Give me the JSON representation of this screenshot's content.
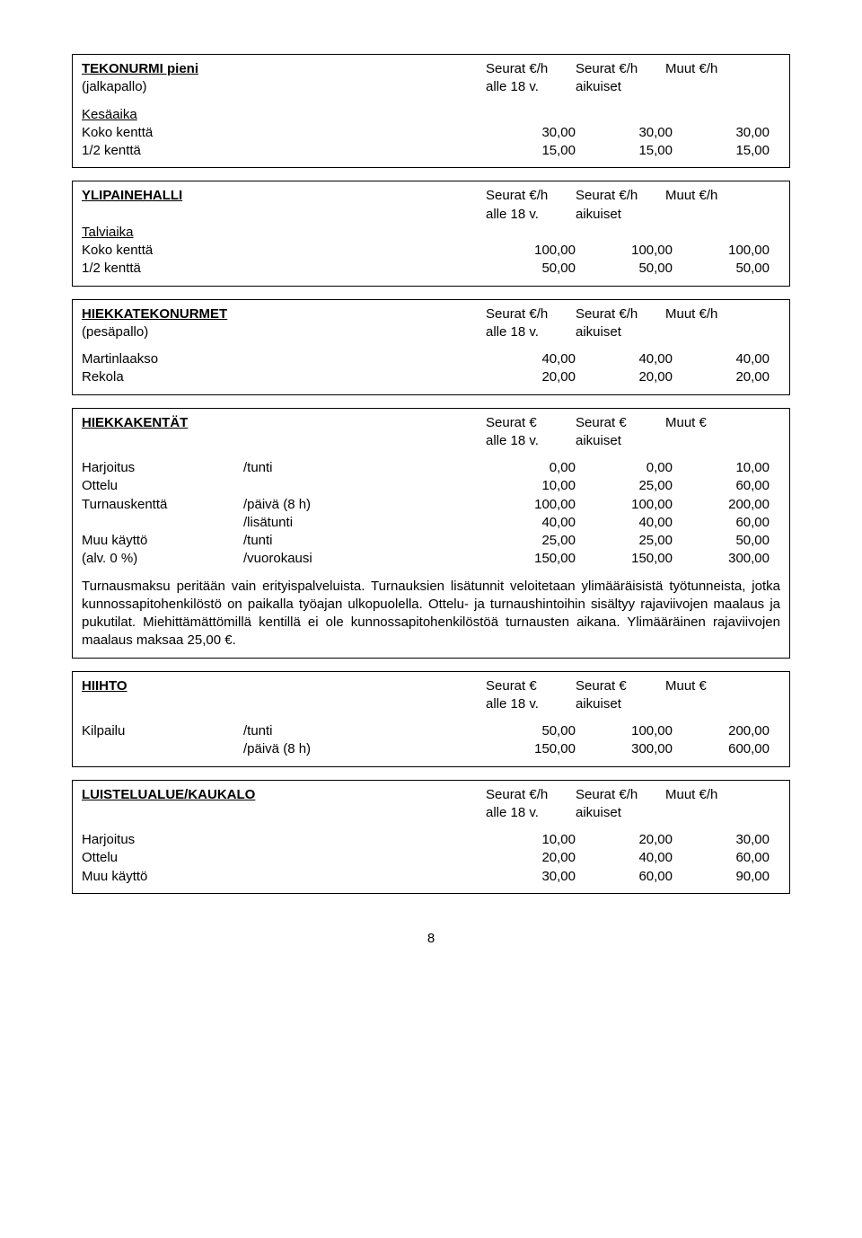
{
  "s1": {
    "title": "TEKONURMI pieni",
    "sub": "(jalkapallo)",
    "h1": "Seurat €/h",
    "h2": "Seurat €/h",
    "h3": "Muut €/h",
    "h1b": "alle 18 v.",
    "h2b": "aikuiset",
    "cat": "Kesäaika",
    "r1l": "Koko kenttä",
    "r1a": "30,00",
    "r1b": "30,00",
    "r1c": "30,00",
    "r2l": "1/2 kenttä",
    "r2a": "15,00",
    "r2b": "15,00",
    "r2c": "15,00"
  },
  "s2": {
    "title": "YLIPAINEHALLI",
    "h1": "Seurat €/h",
    "h2": "Seurat €/h",
    "h3": "Muut €/h",
    "h1b": "alle 18 v.",
    "h2b": "aikuiset",
    "cat": "Talviaika",
    "r1l": "Koko kenttä",
    "r1a": "100,00",
    "r1b": "100,00",
    "r1c": "100,00",
    "r2l": "1/2 kenttä",
    "r2a": "50,00",
    "r2b": "50,00",
    "r2c": "50,00"
  },
  "s3": {
    "title": "HIEKKATEKONURMET",
    "sub": "(pesäpallo)",
    "h1": "Seurat €/h",
    "h2": "Seurat €/h",
    "h3": "Muut €/h",
    "h1b": "alle 18 v.",
    "h2b": "aikuiset",
    "r1l": "Martinlaakso",
    "r1a": "40,00",
    "r1b": "40,00",
    "r1c": "40,00",
    "r2l": "Rekola",
    "r2a": "20,00",
    "r2b": "20,00",
    "r2c": "20,00"
  },
  "s4": {
    "title": "HIEKKAKENTÄT",
    "h1": "Seurat €",
    "h2": "Seurat €",
    "h3": "Muut €",
    "h1b": "alle 18 v.",
    "h2b": "aikuiset",
    "r1l": "Harjoitus",
    "r1m": "/tunti",
    "r1a": "0,00",
    "r1b": "0,00",
    "r1c": "10,00",
    "r2l": "Ottelu",
    "r2m": "",
    "r2a": "10,00",
    "r2b": "25,00",
    "r2c": "60,00",
    "r3l": "Turnauskenttä",
    "r3m": "/päivä (8 h)",
    "r3a": "100,00",
    "r3b": "100,00",
    "r3c": "200,00",
    "r4l": "",
    "r4m": "/lisätunti",
    "r4a": "40,00",
    "r4b": "40,00",
    "r4c": "60,00",
    "r5l": "Muu käyttö",
    "r5m": "/tunti",
    "r5a": "25,00",
    "r5b": "25,00",
    "r5c": "50,00",
    "r6l": "(alv. 0 %)",
    "r6m": "/vuorokausi",
    "r6a": "150,00",
    "r6b": "150,00",
    "r6c": "300,00",
    "para": "Turnausmaksu peritään vain erityispalveluista. Turnauksien lisätunnit veloitetaan ylimääräisistä työtunneista, jotka kunnossapitohenkilöstö on paikalla työajan ulkopuolella. Ottelu- ja turnaushintoihin sisältyy rajaviivojen maalaus ja pukutilat. Miehittämättömillä kentillä ei ole kunnossapitohenkilöstöä turnausten aikana. Ylimääräinen rajaviivojen maalaus maksaa 25,00 €."
  },
  "s5": {
    "title": "HIIHTO",
    "h1": "Seurat €",
    "h2": "Seurat €",
    "h3": "Muut €",
    "h1b": "alle 18 v.",
    "h2b": "aikuiset",
    "r1l": "Kilpailu",
    "r1m": "/tunti",
    "r1a": "50,00",
    "r1b": "100,00",
    "r1c": "200,00",
    "r2l": "",
    "r2m": "/päivä (8 h)",
    "r2a": "150,00",
    "r2b": "300,00",
    "r2c": "600,00"
  },
  "s6": {
    "title": "LUISTELUALUE/KAUKALO",
    "h1": "Seurat €/h",
    "h2": "Seurat €/h",
    "h3": "Muut €/h",
    "h1b": "alle 18 v.",
    "h2b": "aikuiset",
    "r1l": "Harjoitus",
    "r1a": "10,00",
    "r1b": "20,00",
    "r1c": "30,00",
    "r2l": "Ottelu",
    "r2a": "20,00",
    "r2b": "40,00",
    "r2c": "60,00",
    "r3l": "Muu käyttö",
    "r3a": "30,00",
    "r3b": "60,00",
    "r3c": "90,00"
  },
  "page": "8"
}
